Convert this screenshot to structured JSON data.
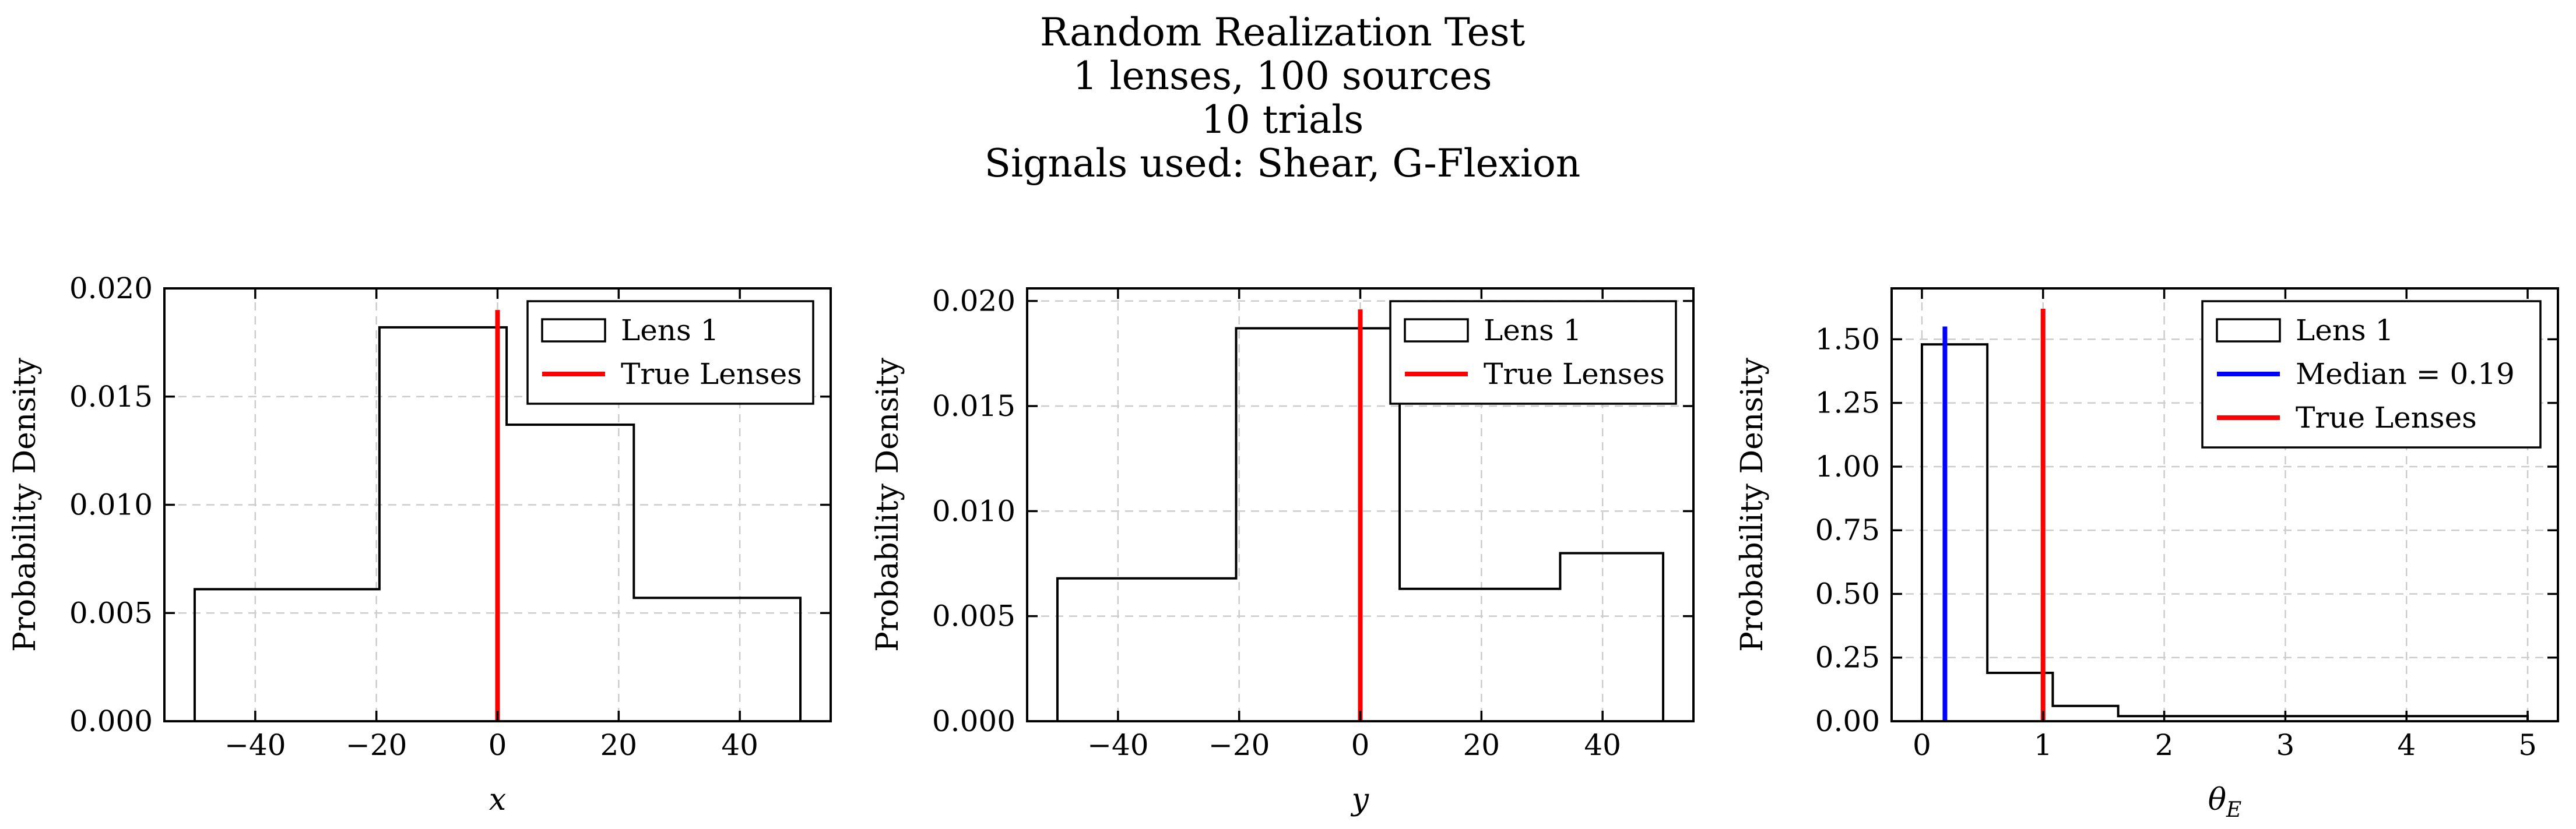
{
  "figure": {
    "title_lines": [
      "Random Realization Test",
      "1 lenses, 100 sources",
      "10 trials",
      "Signals used: Shear, G-Flexion"
    ]
  },
  "chart_data": [
    {
      "type": "histogram",
      "xlabel": "x",
      "ylabel": "Probability Density",
      "xlim": [
        -55,
        55
      ],
      "ylim": [
        0,
        0.02
      ],
      "xticks": [
        -40,
        -20,
        0,
        20,
        40
      ],
      "xtick_labels": [
        "−40",
        "−20",
        "0",
        "20",
        "40"
      ],
      "yticks": [
        0,
        0.005,
        0.01,
        0.015,
        0.02
      ],
      "ytick_labels": [
        "0.000",
        "0.005",
        "0.010",
        "0.015",
        "0.020"
      ],
      "grid": true,
      "legend_position": "top-right",
      "bins": [
        -50,
        -19.5,
        1.5,
        22.5,
        50
      ],
      "densities": [
        0.0061,
        0.0182,
        0.0137,
        0.0057
      ],
      "true_lens": 0,
      "vline_top": 0.019,
      "hist_color": "#000000",
      "true_color": "#ff0000",
      "legend": [
        {
          "label": "Lens 1",
          "kind": "patch",
          "color": "#000000"
        },
        {
          "label": "True Lenses",
          "kind": "line",
          "color": "#ff0000"
        }
      ]
    },
    {
      "type": "histogram",
      "xlabel": "y",
      "ylabel": "Probability Density",
      "xlim": [
        -55,
        55
      ],
      "ylim": [
        0,
        0.0206
      ],
      "xticks": [
        -40,
        -20,
        0,
        20,
        40
      ],
      "xtick_labels": [
        "−40",
        "−20",
        "0",
        "20",
        "40"
      ],
      "yticks": [
        0,
        0.005,
        0.01,
        0.015,
        0.02
      ],
      "ytick_labels": [
        "0.000",
        "0.005",
        "0.010",
        "0.015",
        "0.020"
      ],
      "grid": true,
      "legend_position": "top-right",
      "bins": [
        -50,
        -20.5,
        6.5,
        33,
        50
      ],
      "densities": [
        0.0068,
        0.0187,
        0.0063,
        0.008
      ],
      "true_lens": 0,
      "vline_top": 0.0196,
      "hist_color": "#000000",
      "true_color": "#ff0000",
      "legend": [
        {
          "label": "Lens 1",
          "kind": "patch",
          "color": "#000000"
        },
        {
          "label": "True Lenses",
          "kind": "line",
          "color": "#ff0000"
        }
      ]
    },
    {
      "type": "histogram",
      "xlabel": "θ",
      "xlabel_sub": "E",
      "ylabel": "Probability Density",
      "xlim": [
        -0.25,
        5.25
      ],
      "ylim": [
        0,
        1.7
      ],
      "xticks": [
        0,
        1,
        2,
        3,
        4,
        5
      ],
      "xtick_labels": [
        "0",
        "1",
        "2",
        "3",
        "4",
        "5"
      ],
      "yticks": [
        0,
        0.25,
        0.5,
        0.75,
        1.0,
        1.25,
        1.5
      ],
      "ytick_labels": [
        "0.00",
        "0.25",
        "0.50",
        "0.75",
        "1.00",
        "1.25",
        "1.50"
      ],
      "grid": true,
      "legend_position": "top-right",
      "bins": [
        0,
        0.54,
        1.08,
        1.62,
        5
      ],
      "densities": [
        1.48,
        0.19,
        0.06,
        0.02
      ],
      "true_lens": 1.0,
      "median": 0.19,
      "vline_top": 1.62,
      "median_top": 1.55,
      "hist_color": "#000000",
      "true_color": "#ff0000",
      "median_color": "#0000ff",
      "legend": [
        {
          "label": "Lens 1",
          "kind": "patch",
          "color": "#000000"
        },
        {
          "label": "Median = 0.19",
          "kind": "line",
          "color": "#0000ff"
        },
        {
          "label": "True Lenses",
          "kind": "line",
          "color": "#ff0000"
        }
      ]
    }
  ]
}
